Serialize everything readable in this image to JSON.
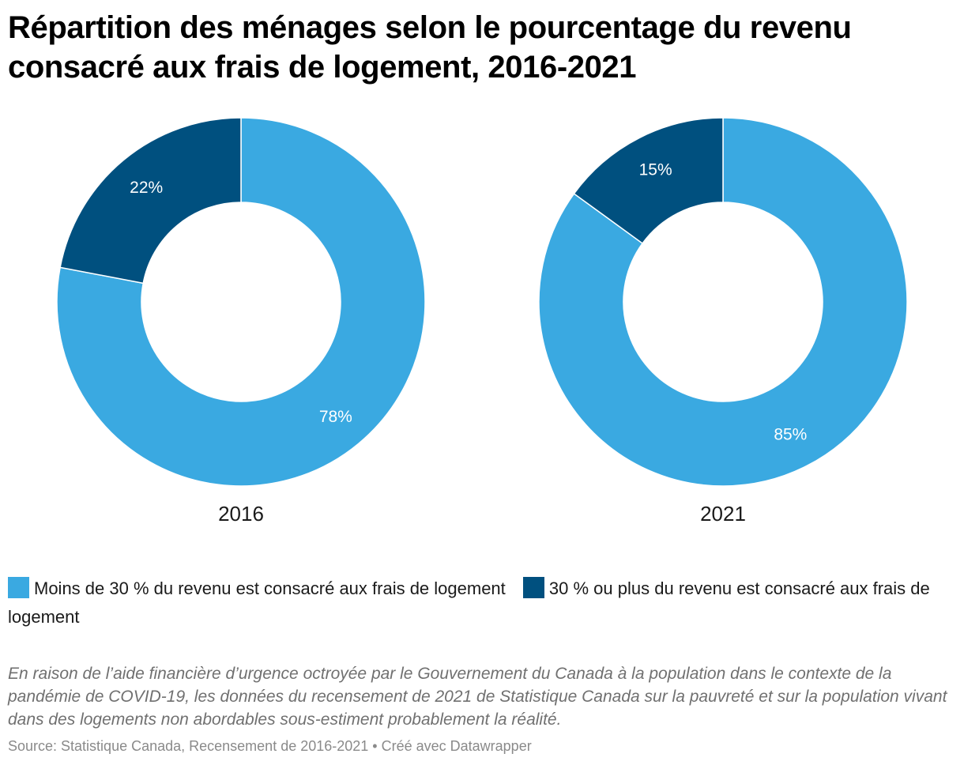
{
  "title": "Répartition des ménages selon le pourcentage du revenu consacré aux frais de logement, 2016-2021",
  "colors": {
    "light_blue": "#3aa9e1",
    "dark_blue": "#00507f"
  },
  "legend": [
    {
      "label": "Moins de 30 % du revenu est consacré aux frais de logement",
      "color": "#3aa9e1"
    },
    {
      "label": "30 % ou plus du revenu est consacré aux frais de logement",
      "color": "#00507f"
    }
  ],
  "note": "En raison de l’aide financière d’urgence octroyée par le Gouvernement du Canada à la population dans le contexte de la pandémie de COVID-19, les données du recensement de 2021 de Statistique Canada sur la pauvreté et sur la population vivant dans des logements non abordables sous-estiment probablement la réalité.",
  "source": "Source: Statistique Canada, Recensement de 2016-2021 • Créé avec Datawrapper",
  "chart_data": [
    {
      "type": "pie",
      "variant": "donut",
      "label": "2016",
      "categories": [
        "Moins de 30 % du revenu est consacré aux frais de logement",
        "30 % ou plus du revenu est consacré aux frais de logement"
      ],
      "values": [
        78,
        22
      ],
      "value_labels": [
        "78%",
        "22%"
      ],
      "colors": [
        "#3aa9e1",
        "#00507f"
      ]
    },
    {
      "type": "pie",
      "variant": "donut",
      "label": "2021",
      "categories": [
        "Moins de 30 % du revenu est consacré aux frais de logement",
        "30 % ou plus du revenu est consacré aux frais de logement"
      ],
      "values": [
        85,
        15
      ],
      "value_labels": [
        "85%",
        "15%"
      ],
      "colors": [
        "#3aa9e1",
        "#00507f"
      ]
    }
  ]
}
